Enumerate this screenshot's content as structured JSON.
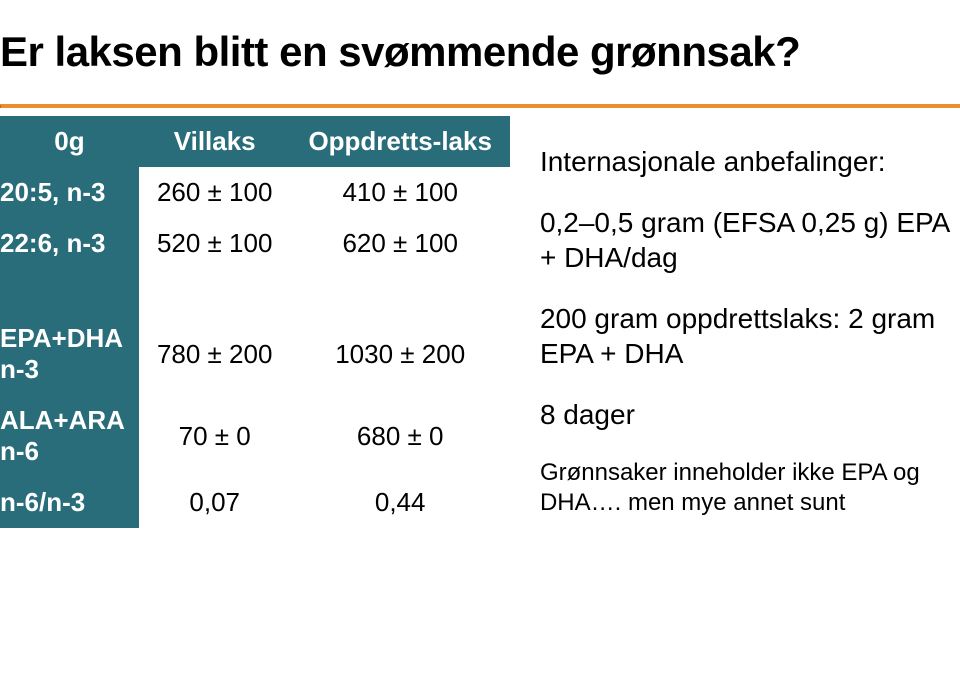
{
  "colors": {
    "teal": "#2a6d7a",
    "orange": "#e98f2e",
    "white": "#ffffff",
    "black": "#000000"
  },
  "title": "Er laksen blitt en svømmende grønnsak?",
  "table": {
    "corner": "0g",
    "col_headers": [
      "Villaks",
      "Oppdretts-laks"
    ],
    "rows": [
      {
        "label": "20:5, n-3",
        "c1": "260 ± 100",
        "c2": "410 ± 100"
      },
      {
        "label": "22:6, n-3",
        "c1": "520 ± 100",
        "c2": "620 ± 100"
      },
      {
        "label": "",
        "c1": "",
        "c2": "",
        "empty": true
      },
      {
        "label": "EPA+DHA\nn-3",
        "c1": "780 ± 200",
        "c2": "1030 ± 200"
      },
      {
        "label": "ALA+ARA\nn-6",
        "c1": "70 ± 0",
        "c2": "680 ± 0"
      },
      {
        "label": " n-6/n-3",
        "c1": "0,07",
        "c2": "0,44"
      }
    ]
  },
  "right": {
    "line1": "Internasjonale anbefalinger:",
    "line2": "0,2–0,5 gram (EFSA 0,25 g) EPA + DHA/dag",
    "line3": "200 gram oppdrettslaks: 2 gram EPA + DHA",
    "line4": "8 dager",
    "footnote": "Grønnsaker inneholder ikke EPA og DHA…. men mye annet sunt"
  }
}
